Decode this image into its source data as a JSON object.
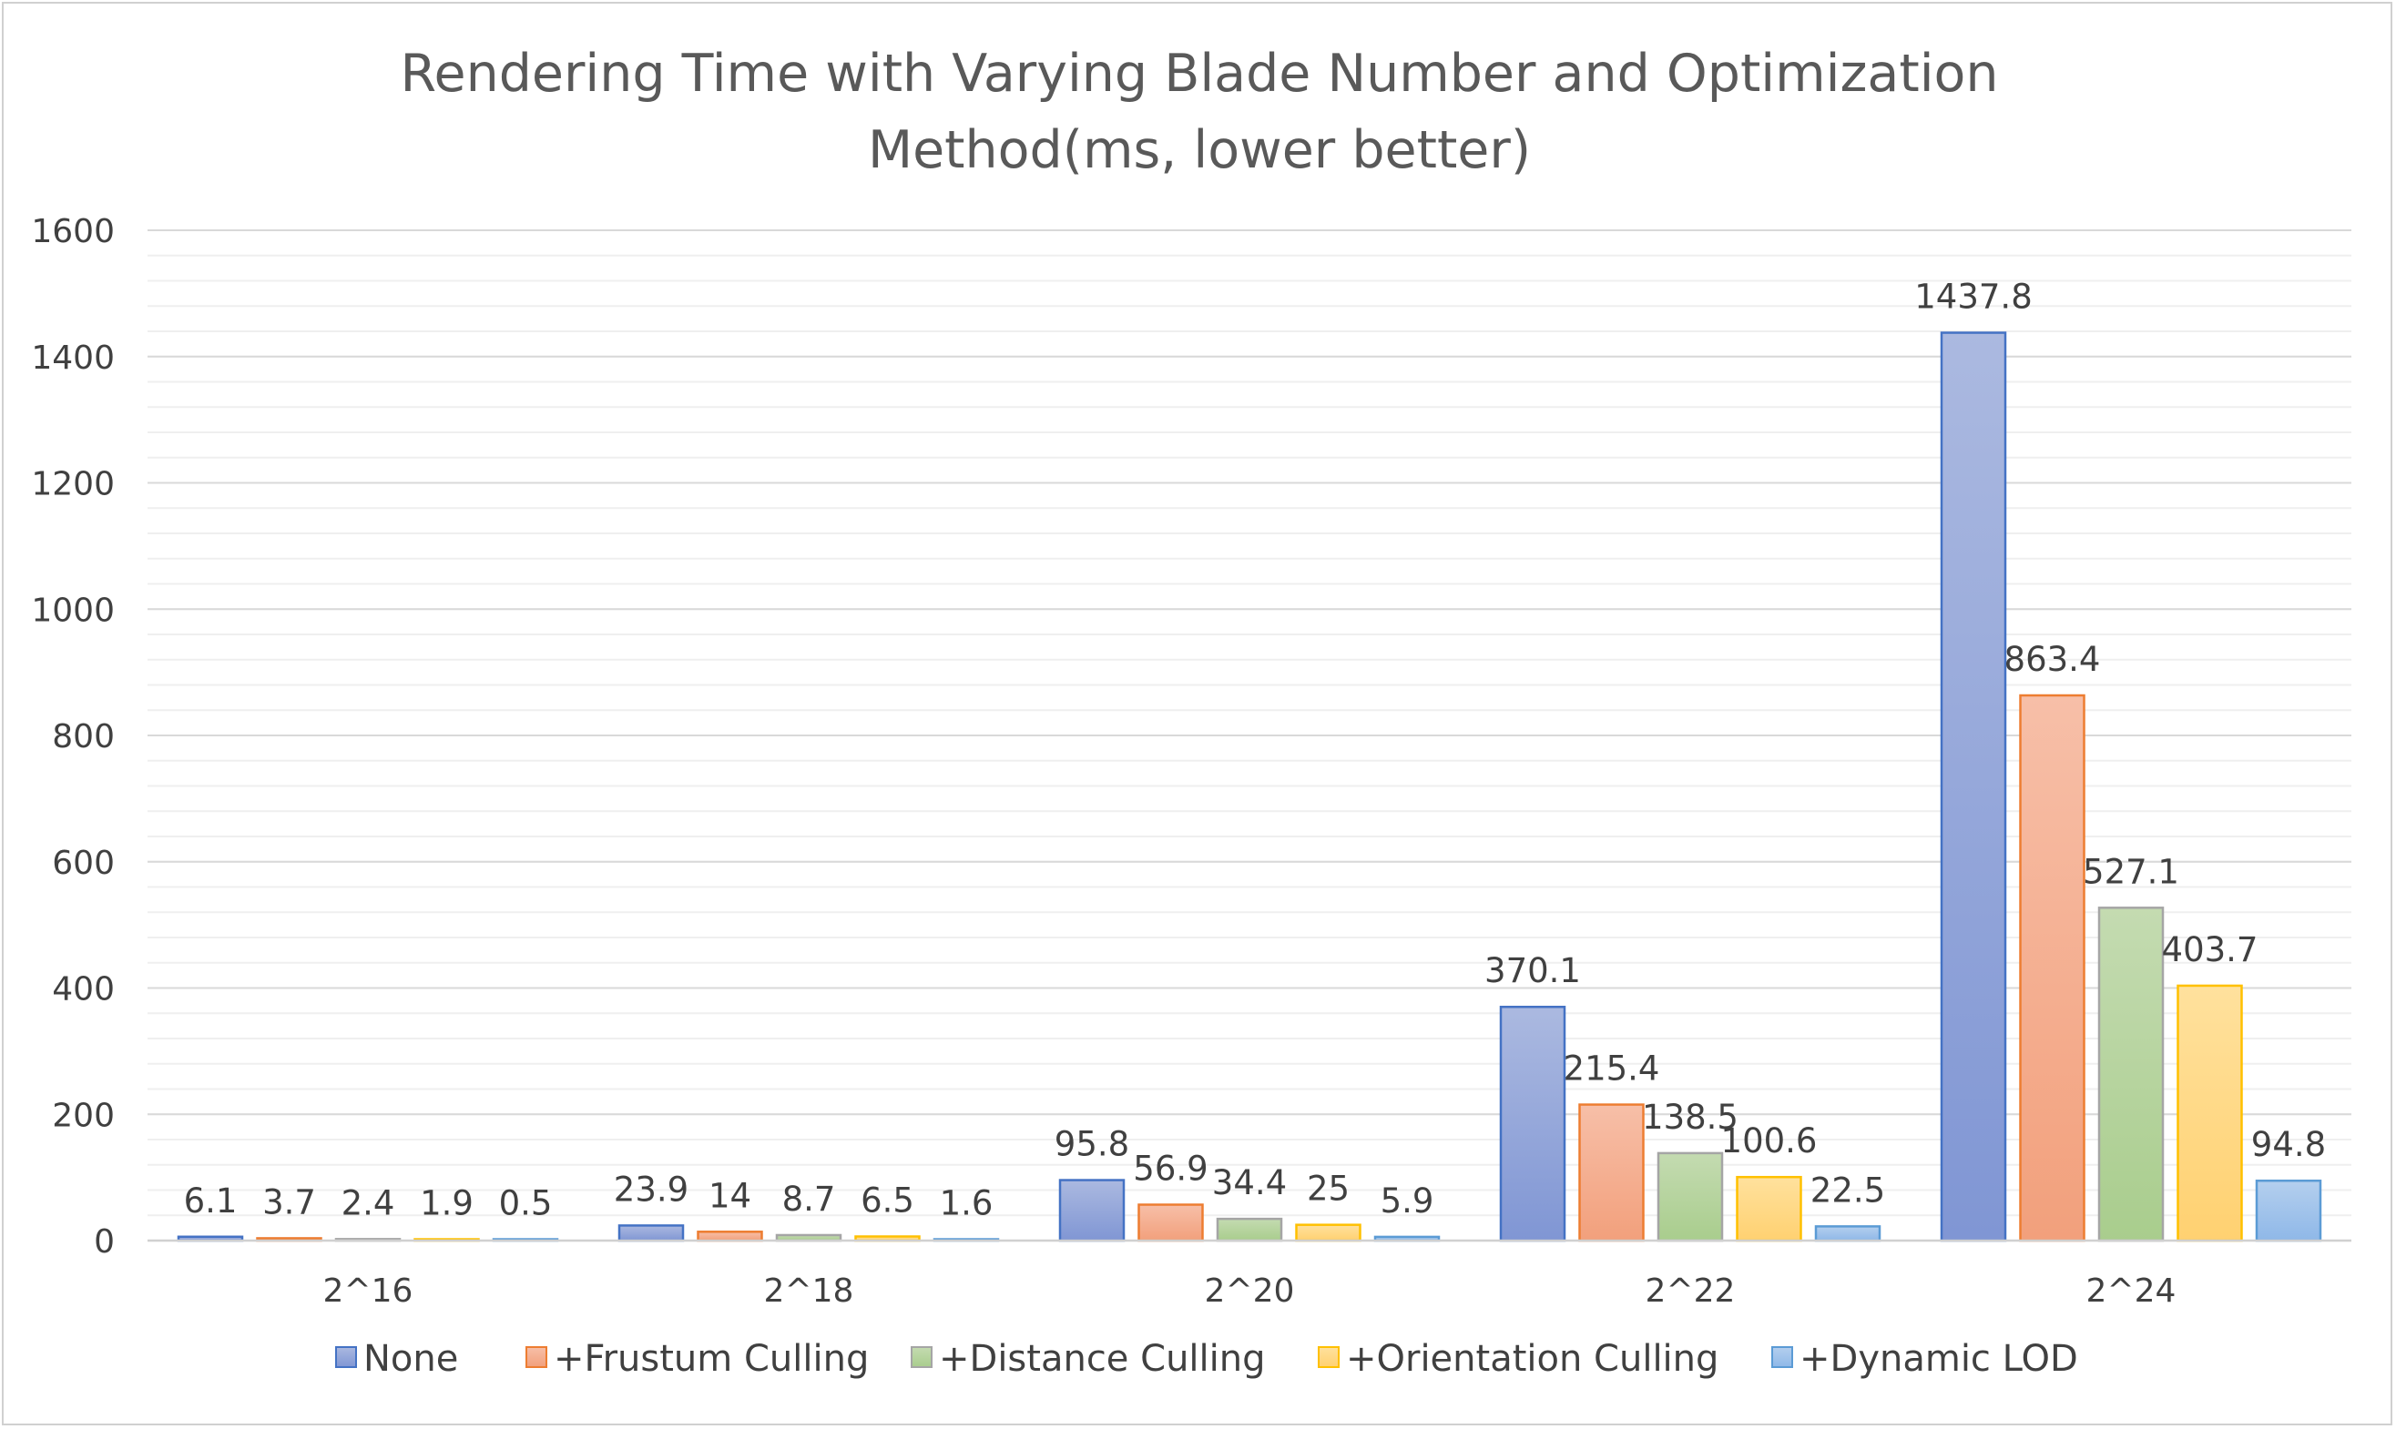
{
  "chart_data": {
    "type": "bar",
    "title": "Rendering Time with Varying Blade Number and Optimization Method(ms, lower better)",
    "title_lines": [
      "Rendering Time with Varying Blade Number and Optimization",
      "Method(ms, lower better)"
    ],
    "xlabel": "",
    "ylabel": "",
    "ylim": [
      0,
      1600
    ],
    "yticks": [
      0,
      200,
      400,
      600,
      800,
      1000,
      1200,
      1400,
      1600
    ],
    "ytick_labels": [
      "0",
      "200",
      "400",
      "600",
      "800",
      "1000",
      "1200",
      "1400",
      "1600"
    ],
    "grid": true,
    "legend_position": "bottom",
    "categories": [
      "2^16",
      "2^18",
      "2^20",
      "2^22",
      "2^24"
    ],
    "series": [
      {
        "name": "None",
        "values": [
          6.1,
          23.9,
          95.8,
          370.1,
          1437.8
        ],
        "labels": [
          "6.1",
          "23.9",
          "95.8",
          "370.1",
          "1437.8"
        ],
        "color_top": "#abb9e0",
        "color_bottom": "#8096d4",
        "border": "#4472c4"
      },
      {
        "name": "+Frustum Culling",
        "values": [
          3.7,
          14,
          56.9,
          215.4,
          863.4
        ],
        "labels": [
          "3.7",
          "14",
          "56.9",
          "215.4",
          "863.4"
        ],
        "color_top": "#f7bfa8",
        "color_bottom": "#f2a07c",
        "border": "#ed7d31"
      },
      {
        "name": "+Distance Culling",
        "values": [
          2.4,
          8.7,
          34.4,
          138.5,
          527.1
        ],
        "labels": [
          "2.4",
          "8.7",
          "34.4",
          "138.5",
          "527.1"
        ],
        "color_top": "#c4dbb1",
        "color_bottom": "#a9cd8d",
        "border": "#a5a5a5"
      },
      {
        "name": "+Orientation Culling",
        "values": [
          1.9,
          6.5,
          25,
          100.6,
          403.7
        ],
        "labels": [
          "1.9",
          "6.5",
          "25",
          "100.6",
          "403.7"
        ],
        "color_top": "#ffe19d",
        "color_bottom": "#ffd171",
        "border": "#ffc000"
      },
      {
        "name": "+Dynamic LOD",
        "values": [
          0.5,
          1.6,
          5.9,
          22.5,
          94.8
        ],
        "labels": [
          "0.5",
          "1.6",
          "5.9",
          "22.5",
          "94.8"
        ],
        "color_top": "#b4cfee",
        "color_bottom": "#8fb8e8",
        "border": "#5b9bd5"
      }
    ]
  }
}
